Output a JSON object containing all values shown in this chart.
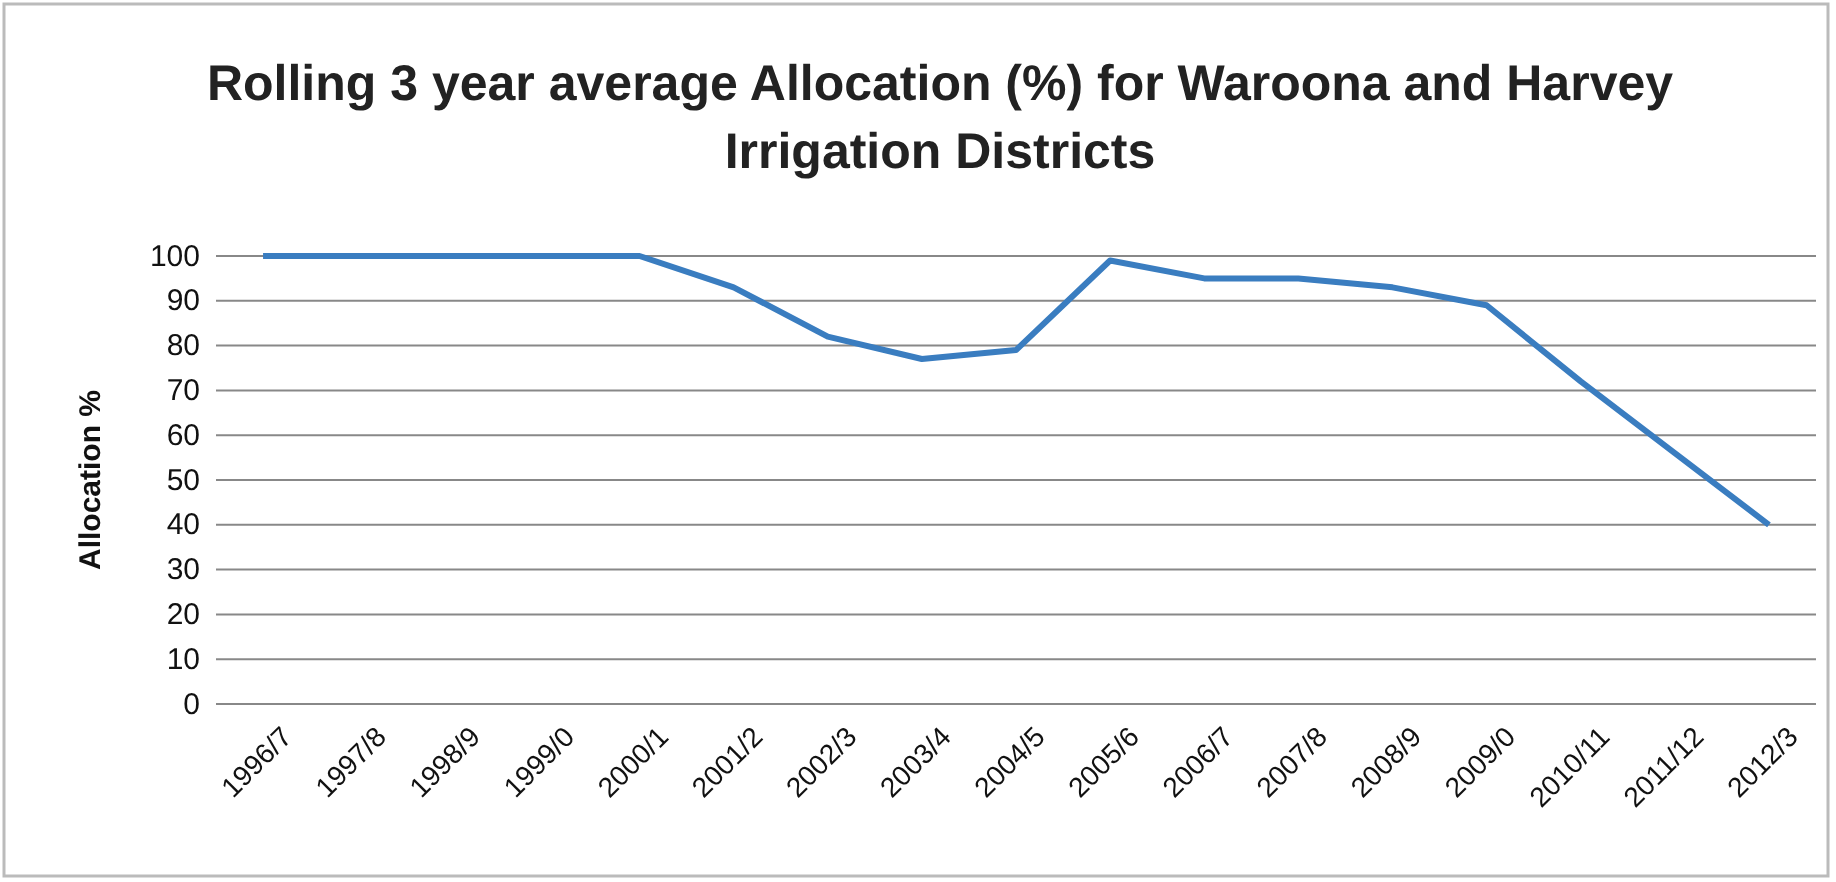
{
  "chart_data": {
    "type": "line",
    "title": "Rolling 3 year average Allocation  (%) for Waroona and Harvey Irrigation Districts",
    "ylabel": "Allocation %",
    "categories": [
      "1996/7",
      "1997/8",
      "1998/9",
      "1999/0",
      "2000/1",
      "2001/2",
      "2002/3",
      "2003/4",
      "2004/5",
      "2005/6",
      "2006/7",
      "2007/8",
      "2008/9",
      "2009/0",
      "2010/11",
      "2011/12",
      "2012/3"
    ],
    "series": [
      {
        "color": "#3a7dc0",
        "values": [
          100,
          100,
          100,
          100,
          100,
          93,
          82,
          77,
          79,
          99,
          95,
          95,
          93,
          89,
          72,
          56,
          40
        ]
      }
    ],
    "ylim": [
      0,
      100
    ],
    "yticks": [
      0,
      10,
      20,
      30,
      40,
      50,
      60,
      70,
      80,
      90,
      100
    ],
    "grid": "y",
    "marker": "none",
    "line_style": "solid"
  }
}
